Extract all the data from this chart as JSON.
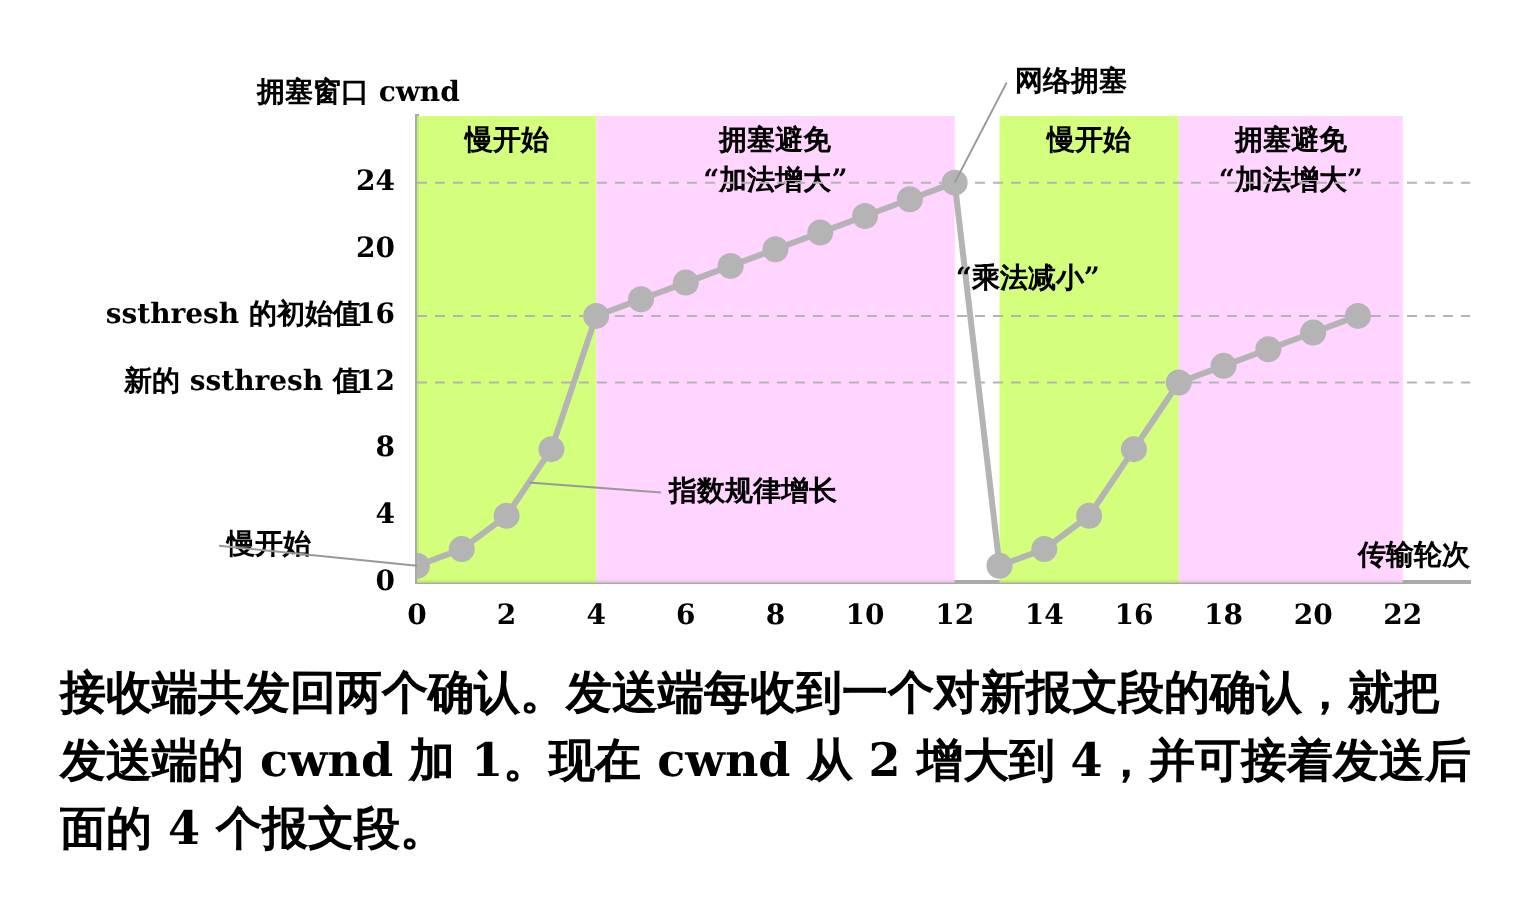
{
  "chart_data": {
    "type": "line",
    "xlabel": "传输轮次",
    "ylabel": "拥塞窗口 cwnd",
    "x": [
      0,
      1,
      2,
      3,
      4,
      5,
      6,
      7,
      8,
      9,
      10,
      11,
      12,
      13,
      14,
      15,
      16,
      17,
      18,
      19,
      20,
      21
    ],
    "series": [
      {
        "color": "#b4b4b4",
        "values": [
          1,
          2,
          4,
          8,
          16,
          17,
          18,
          19,
          20,
          21,
          22,
          23,
          24,
          1,
          2,
          4,
          8,
          12,
          13,
          14,
          15,
          16
        ]
      }
    ],
    "xlim": [
      0,
      23.5
    ],
    "xticks": [
      0,
      2,
      4,
      6,
      8,
      10,
      12,
      14,
      16,
      18,
      20,
      22
    ],
    "ylim": [
      0,
      28
    ],
    "yticks": [
      0,
      4,
      8,
      12,
      16,
      20,
      24
    ],
    "grid": false,
    "legend": false,
    "marker": "circle",
    "ref_lines": [
      {
        "axis": "y",
        "value": 24,
        "line_style": "dashed",
        "color": "#b4b4b4"
      },
      {
        "axis": "y",
        "value": 16,
        "label": "ssthresh 的初始值",
        "line_style": "dashed",
        "color": "#b4b4b4"
      },
      {
        "axis": "y",
        "value": 12,
        "label": "新的 ssthresh 值",
        "line_style": "dashed",
        "color": "#b4b4b4"
      }
    ],
    "bands": [
      {
        "axis": "x",
        "from": 0,
        "to": 4,
        "label": "慢开始",
        "color": "#ccff66"
      },
      {
        "axis": "x",
        "from": 4,
        "to": 12,
        "label": "拥塞避免\n“加法增大”",
        "color": "#ffccff"
      },
      {
        "axis": "x",
        "from": 13,
        "to": 17,
        "label": "慢开始",
        "color": "#ccff66"
      },
      {
        "axis": "x",
        "from": 17,
        "to": 22,
        "label": "拥塞避免\n“加法增大”",
        "color": "#ffccff"
      }
    ],
    "annotations": [
      {
        "text": "慢开始",
        "x": 0,
        "y": 1
      },
      {
        "text": "指数规律增长",
        "x": 2.5,
        "y": 6
      },
      {
        "text": "网络拥塞",
        "x": 12,
        "y": 24
      },
      "“乘法减小”",
      "接收端共发回两个确认。发送端每收到一个对新报文段的确认，就把发送端的 cwnd 加 1。现在 cwnd 从 2 增大到 4，并可接着发送后面的 4 个报文段。"
    ]
  }
}
